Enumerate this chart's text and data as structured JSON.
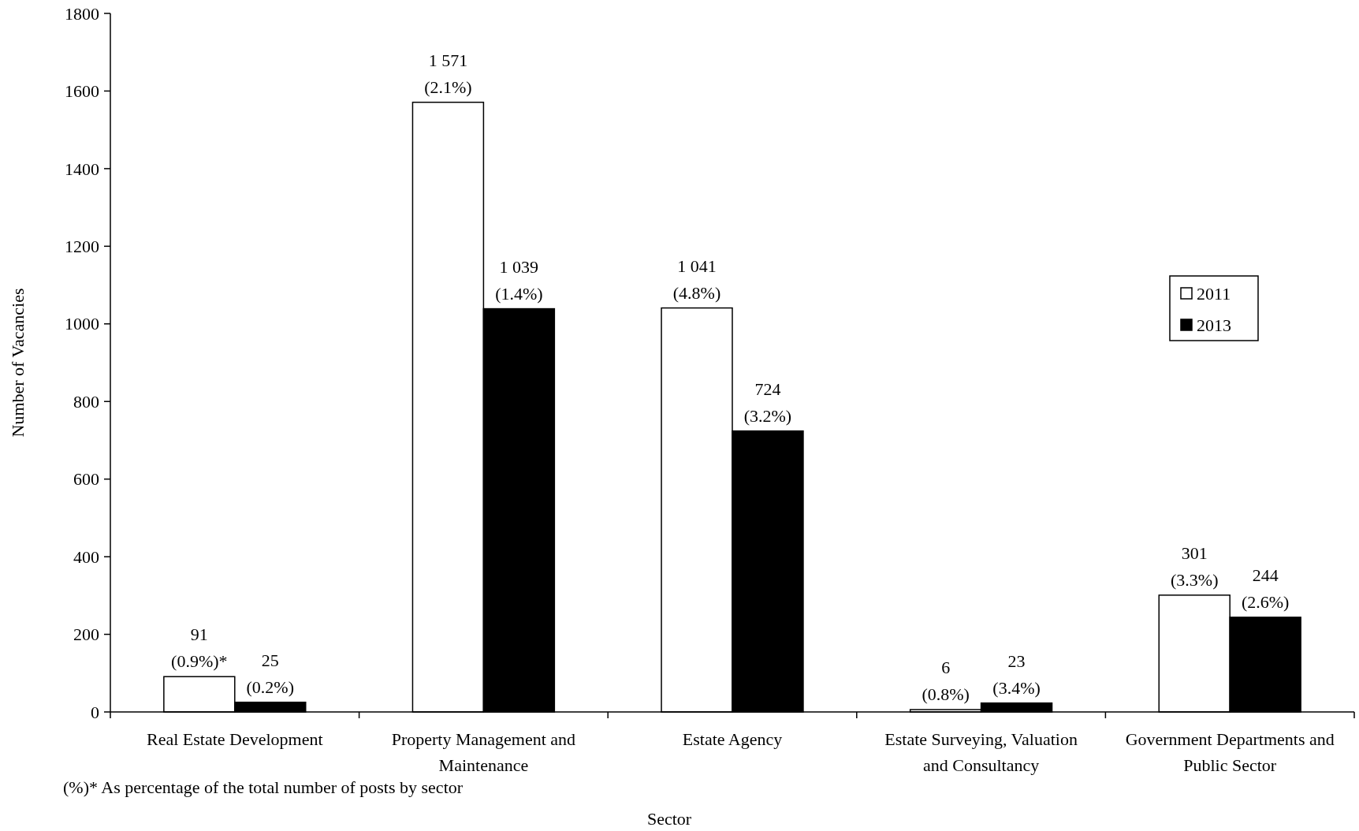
{
  "chart_data": {
    "type": "bar",
    "xlabel": "Sector",
    "ylabel": "Number of Vacancies",
    "categories": [
      "Real Estate Development",
      "Property Management and Maintenance",
      "Estate Agency",
      "Estate Surveying, Valuation and Consultancy",
      "Government Departments and Public Sector"
    ],
    "series": [
      {
        "name": "2011",
        "color": "#ffffff",
        "values": [
          91,
          1571,
          1041,
          6,
          301
        ],
        "value_labels": [
          "91\n(0.9%)*",
          "1 571\n(2.1%)",
          "1 041\n(4.8%)",
          "6\n(0.8%)",
          "301\n(3.3%)"
        ]
      },
      {
        "name": "2013",
        "color": "#000000",
        "values": [
          25,
          1039,
          724,
          23,
          244
        ],
        "value_labels": [
          "25\n(0.2%)",
          "1 039\n(1.4%)",
          "724\n(3.2%)",
          "23\n(3.4%)",
          "244\n(2.6%)"
        ]
      }
    ],
    "ylim": [
      0,
      1800
    ],
    "yticks": [
      0,
      200,
      400,
      600,
      800,
      1000,
      1200,
      1400,
      1600,
      1800
    ],
    "legend": "right",
    "grid": false,
    "annotations": [
      "(%)*  As percentage of the total number of posts by sector"
    ]
  }
}
